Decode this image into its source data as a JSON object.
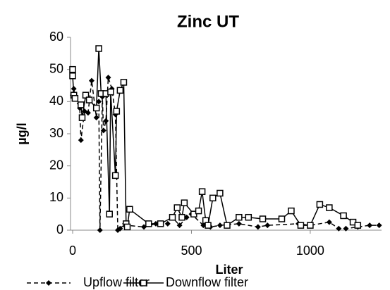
{
  "chart_data": {
    "type": "line",
    "title": "Zinc UT",
    "x_label": "Liter",
    "y_label": "µg/l",
    "xlim": [
      0,
      1300
    ],
    "xticks": [
      0,
      500,
      1000
    ],
    "ylim": [
      0,
      60
    ],
    "yticks": [
      0,
      10,
      20,
      30,
      40,
      50,
      60
    ],
    "grid": false,
    "legend": "bottom",
    "series": [
      {
        "name": "Upflow filter",
        "color": "#000000",
        "line_style": "dashed",
        "marker": "diamond",
        "x": [
          0,
          5,
          10,
          30,
          35,
          50,
          65,
          80,
          100,
          110,
          115,
          125,
          130,
          140,
          150,
          165,
          180,
          190,
          200,
          220,
          230,
          300,
          350,
          400,
          420,
          450,
          480,
          500,
          550,
          580,
          620,
          700,
          780,
          820,
          950,
          1000,
          1080,
          1120,
          1150,
          1200,
          1250,
          1290
        ],
        "values": [
          42,
          44,
          41,
          38,
          28,
          37,
          36.5,
          46.5,
          35,
          40,
          0,
          41.5,
          31,
          34,
          47.5,
          44,
          36,
          0,
          0.5,
          2,
          1.5,
          1,
          2,
          2,
          4,
          1.5,
          4,
          5,
          1.5,
          1,
          1.5,
          2,
          1,
          1.5,
          2,
          1.5,
          2.5,
          0.5,
          0.5,
          1,
          1.5,
          1.5
        ]
      },
      {
        "name": "Downflow filter",
        "color": "#000000",
        "line_style": "solid",
        "marker": "square",
        "x": [
          0,
          0,
          5,
          10,
          35,
          40,
          55,
          70,
          100,
          110,
          120,
          140,
          155,
          160,
          180,
          185,
          200,
          215,
          225,
          230,
          240,
          320,
          370,
          420,
          440,
          460,
          470,
          510,
          530,
          545,
          560,
          570,
          590,
          620,
          650,
          700,
          740,
          800,
          880,
          920,
          960,
          1000,
          1040,
          1080,
          1140,
          1180,
          1200
        ],
        "values": [
          50,
          48,
          42,
          41,
          39,
          35,
          42,
          40.5,
          38,
          56.5,
          42.5,
          42.5,
          5,
          43,
          17,
          37,
          43.5,
          46,
          2,
          1,
          6.5,
          2,
          2,
          4,
          7,
          4,
          8.5,
          5,
          6,
          12,
          3,
          1.5,
          10,
          11.5,
          1.5,
          4,
          4,
          3.5,
          3.5,
          6,
          1.5,
          1.5,
          8,
          7,
          4.5,
          2.5,
          1.5
        ]
      }
    ]
  }
}
